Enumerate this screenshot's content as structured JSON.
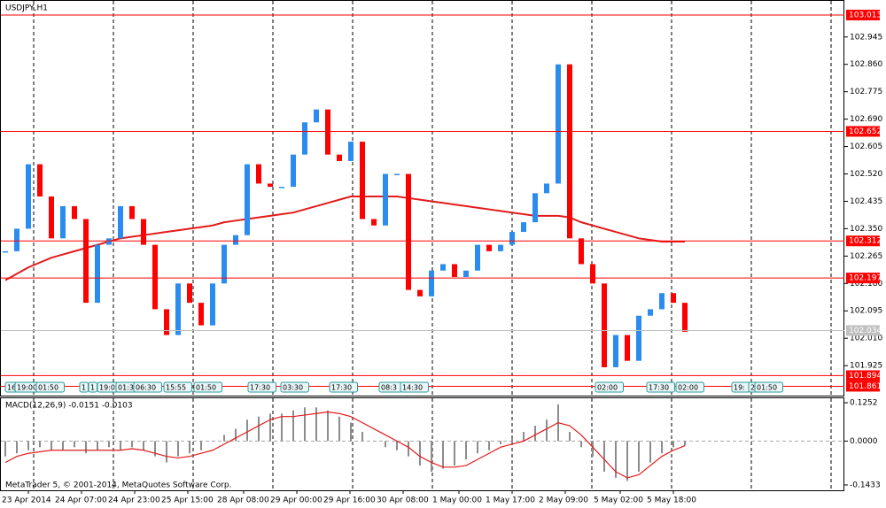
{
  "chart_data": [
    {
      "type": "candlestick",
      "title": "USDJPY,H1",
      "close": [
        102.28,
        102.35,
        102.55,
        102.45,
        102.32,
        102.42,
        102.38,
        102.12,
        102.3,
        102.32,
        102.42,
        102.38,
        102.3,
        102.1,
        102.02,
        102.18,
        102.12,
        102.05,
        102.18,
        102.3,
        102.33,
        102.55,
        102.49,
        102.48,
        102.48,
        102.58,
        102.68,
        102.72,
        102.58,
        102.56,
        102.62,
        102.38,
        102.36,
        102.52,
        102.52,
        102.16,
        102.14,
        102.22,
        102.24,
        102.2,
        102.22,
        102.3,
        102.28,
        102.3,
        102.34,
        102.37,
        102.46,
        102.49,
        102.86,
        102.32,
        102.24,
        102.18,
        101.92,
        102.02,
        101.94,
        102.08,
        102.1,
        102.15,
        102.12,
        102.03
      ],
      "up_color": "#2b8cf0",
      "down_color": "#ff0000",
      "moving_average": {
        "color": "#e31b1b",
        "values": [
          102.19,
          102.21,
          102.23,
          102.245,
          102.26,
          102.27,
          102.28,
          102.29,
          102.3,
          102.31,
          102.32,
          102.325,
          102.33,
          102.335,
          102.34,
          102.345,
          102.35,
          102.355,
          102.36,
          102.37,
          102.375,
          102.38,
          102.385,
          102.39,
          102.395,
          102.4,
          102.41,
          102.42,
          102.43,
          102.44,
          102.45,
          102.45,
          102.45,
          102.45,
          102.45,
          102.445,
          102.44,
          102.435,
          102.43,
          102.425,
          102.42,
          102.415,
          102.41,
          102.405,
          102.4,
          102.395,
          102.39,
          102.39,
          102.39,
          102.385,
          102.37,
          102.36,
          102.35,
          102.34,
          102.33,
          102.32,
          102.315,
          102.31,
          102.31,
          102.31
        ]
      },
      "levels": [
        103.013,
        102.652,
        102.312,
        102.197,
        101.894,
        101.861
      ],
      "level_color": "#ff0000",
      "last_price": 102.034,
      "ylim": [
        101.832,
        103.057
      ],
      "yticks": [
        102.945,
        {
          "value": 102.86,
          "label": "102.860"
        },
        102.775,
        {
          "value": 102.69,
          "label": "102.690"
        },
        102.605,
        {
          "value": 102.52,
          "label": "102.520"
        },
        102.435,
        {
          "value": 102.35,
          "label": "102.350"
        },
        102.265,
        {
          "value": 102.18,
          "label": "102.180"
        },
        102.095,
        {
          "value": 102.01,
          "label": "102.010"
        },
        101.925
      ],
      "grid": true,
      "trade_tags": [
        "16",
        "19:00",
        "01:50",
        "1",
        "1",
        "19:00",
        "01:3",
        "06:30",
        "15:55",
        "01:50",
        "17:30",
        "03:30",
        "17:30",
        "08:3",
        "14:30",
        "02:00",
        "17:30",
        "02:00",
        "19:",
        "2",
        "01:50"
      ]
    },
    {
      "type": "macd",
      "title": "MACD(12,26,9) -0.0151 -0.0103",
      "histogram": [
        -0.05,
        -0.04,
        -0.03,
        -0.02,
        -0.03,
        -0.03,
        -0.02,
        -0.04,
        -0.03,
        -0.02,
        -0.03,
        -0.02,
        -0.03,
        -0.05,
        -0.07,
        -0.05,
        -0.04,
        -0.03,
        0.0,
        0.02,
        0.04,
        0.07,
        0.08,
        0.09,
        0.09,
        0.1,
        0.11,
        0.11,
        0.1,
        0.08,
        0.06,
        0.03,
        0.0,
        -0.02,
        -0.03,
        -0.05,
        -0.08,
        -0.1,
        -0.09,
        -0.08,
        -0.06,
        -0.04,
        -0.03,
        -0.01,
        0.01,
        0.03,
        0.05,
        0.07,
        0.12,
        0.03,
        -0.02,
        -0.05,
        -0.1,
        -0.12,
        -0.13,
        -0.1,
        -0.07,
        -0.04,
        -0.02,
        -0.015
      ],
      "signal": [
        -0.07,
        -0.05,
        -0.04,
        -0.035,
        -0.03,
        -0.03,
        -0.03,
        -0.03,
        -0.03,
        -0.03,
        -0.03,
        -0.025,
        -0.03,
        -0.04,
        -0.05,
        -0.055,
        -0.05,
        -0.04,
        -0.03,
        -0.01,
        0.01,
        0.03,
        0.05,
        0.07,
        0.08,
        0.08,
        0.085,
        0.09,
        0.095,
        0.09,
        0.08,
        0.06,
        0.04,
        0.02,
        0.0,
        -0.02,
        -0.05,
        -0.07,
        -0.085,
        -0.085,
        -0.08,
        -0.06,
        -0.04,
        -0.02,
        -0.01,
        0.0,
        0.02,
        0.04,
        0.06,
        0.05,
        0.02,
        -0.02,
        -0.06,
        -0.1,
        -0.12,
        -0.11,
        -0.08,
        -0.05,
        -0.03,
        -0.015
      ],
      "hist_color": "#8c8c8c",
      "signal_color": "#e31b1b",
      "ylim": [
        -0.1607,
        0.1398
      ],
      "yticks": [
        0.1252,
        {
          "value": 0,
          "label": "0.0000"
        },
        -0.1433
      ]
    }
  ],
  "time_labels": [
    "23 Apr 2014",
    "24 Apr 07:00",
    "24 Apr 23:00",
    "25 Apr 15:00",
    "28 Apr 08:00",
    "29 Apr 00:00",
    "29 Apr 16:00",
    "30 Apr 08:00",
    "1 May 00:00",
    "1 May 17:00",
    "2 May 09:00",
    "5 May 02:00",
    "5 May 18:00"
  ],
  "footer": "MetaTrader 5, © 2001-2014, MetaQuotes Software Corp."
}
